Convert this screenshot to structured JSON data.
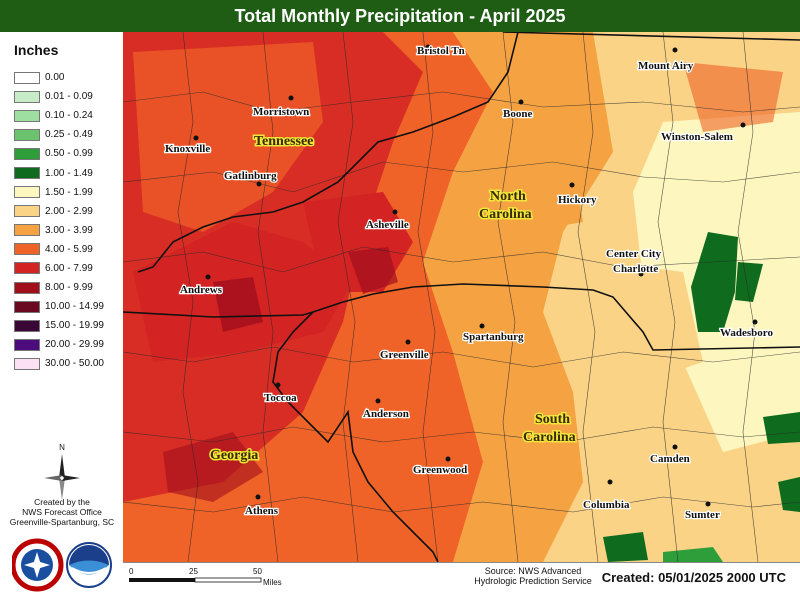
{
  "title": "Total Monthly Precipitation - April 2025",
  "legend": {
    "title": "Inches",
    "items": [
      {
        "label": "0.00",
        "color": "#ffffff"
      },
      {
        "label": "0.01 - 0.09",
        "color": "#c8ecc8"
      },
      {
        "label": "0.10 - 0.24",
        "color": "#9edea0"
      },
      {
        "label": "0.25 - 0.49",
        "color": "#6cc36e"
      },
      {
        "label": "0.50 - 0.99",
        "color": "#2e9e3a"
      },
      {
        "label": "1.00 - 1.49",
        "color": "#0f6b1e"
      },
      {
        "label": "1.50 - 1.99",
        "color": "#fdf7bf"
      },
      {
        "label": "2.00 - 2.99",
        "color": "#fad386"
      },
      {
        "label": "3.00 - 3.99",
        "color": "#f5a243"
      },
      {
        "label": "4.00 - 5.99",
        "color": "#ef6328"
      },
      {
        "label": "6.00 - 7.99",
        "color": "#d42323"
      },
      {
        "label": "8.00 - 9.99",
        "color": "#a10e1c"
      },
      {
        "label": "10.00 - 14.99",
        "color": "#6b0921"
      },
      {
        "label": "15.00 - 19.99",
        "color": "#3a0635"
      },
      {
        "label": "20.00 - 29.99",
        "color": "#4d0c7d"
      },
      {
        "label": "30.00 - 50.00",
        "color": "#fce1f5"
      }
    ]
  },
  "compass": {
    "north_label": "N"
  },
  "office": {
    "line1": "Created by the",
    "line2": "NWS Forecast Office",
    "line3": "Greenville-Spartanburg, SC"
  },
  "logos": {
    "nws_text": "NATIONAL WEATHER SERVICE",
    "noaa_text": "NOAA"
  },
  "scale": {
    "tick0": "0",
    "tick1": "25",
    "tick2": "50",
    "unit": "Miles"
  },
  "source": {
    "line1": "Source: NWS Advanced",
    "line2": "Hydrologic Prediction Service"
  },
  "created": "Created: 05/01/2025 2000 UTC",
  "cities": [
    {
      "name": "Bristol Tn"
    },
    {
      "name": "Mount Airy"
    },
    {
      "name": "Morristown"
    },
    {
      "name": "Boone"
    },
    {
      "name": "Winston-Salem"
    },
    {
      "name": "Knoxville"
    },
    {
      "name": "Gatlinburg"
    },
    {
      "name": "Hickory"
    },
    {
      "name": "Asheville"
    },
    {
      "name": "Center City"
    },
    {
      "name": "Charlotte"
    },
    {
      "name": "Andrews"
    },
    {
      "name": "Wadesboro"
    },
    {
      "name": "Spartanburg"
    },
    {
      "name": "Greenville"
    },
    {
      "name": "Toccoa"
    },
    {
      "name": "Anderson"
    },
    {
      "name": "Camden"
    },
    {
      "name": "Greenwood"
    },
    {
      "name": "Columbia"
    },
    {
      "name": "Sumter"
    },
    {
      "name": "Athens"
    }
  ],
  "states": {
    "tennessee": "Tennessee",
    "north_carolina_1": "North",
    "north_carolina_2": "Carolina",
    "south_carolina_1": "South",
    "south_carolina_2": "Carolina",
    "georgia": "Georgia"
  }
}
